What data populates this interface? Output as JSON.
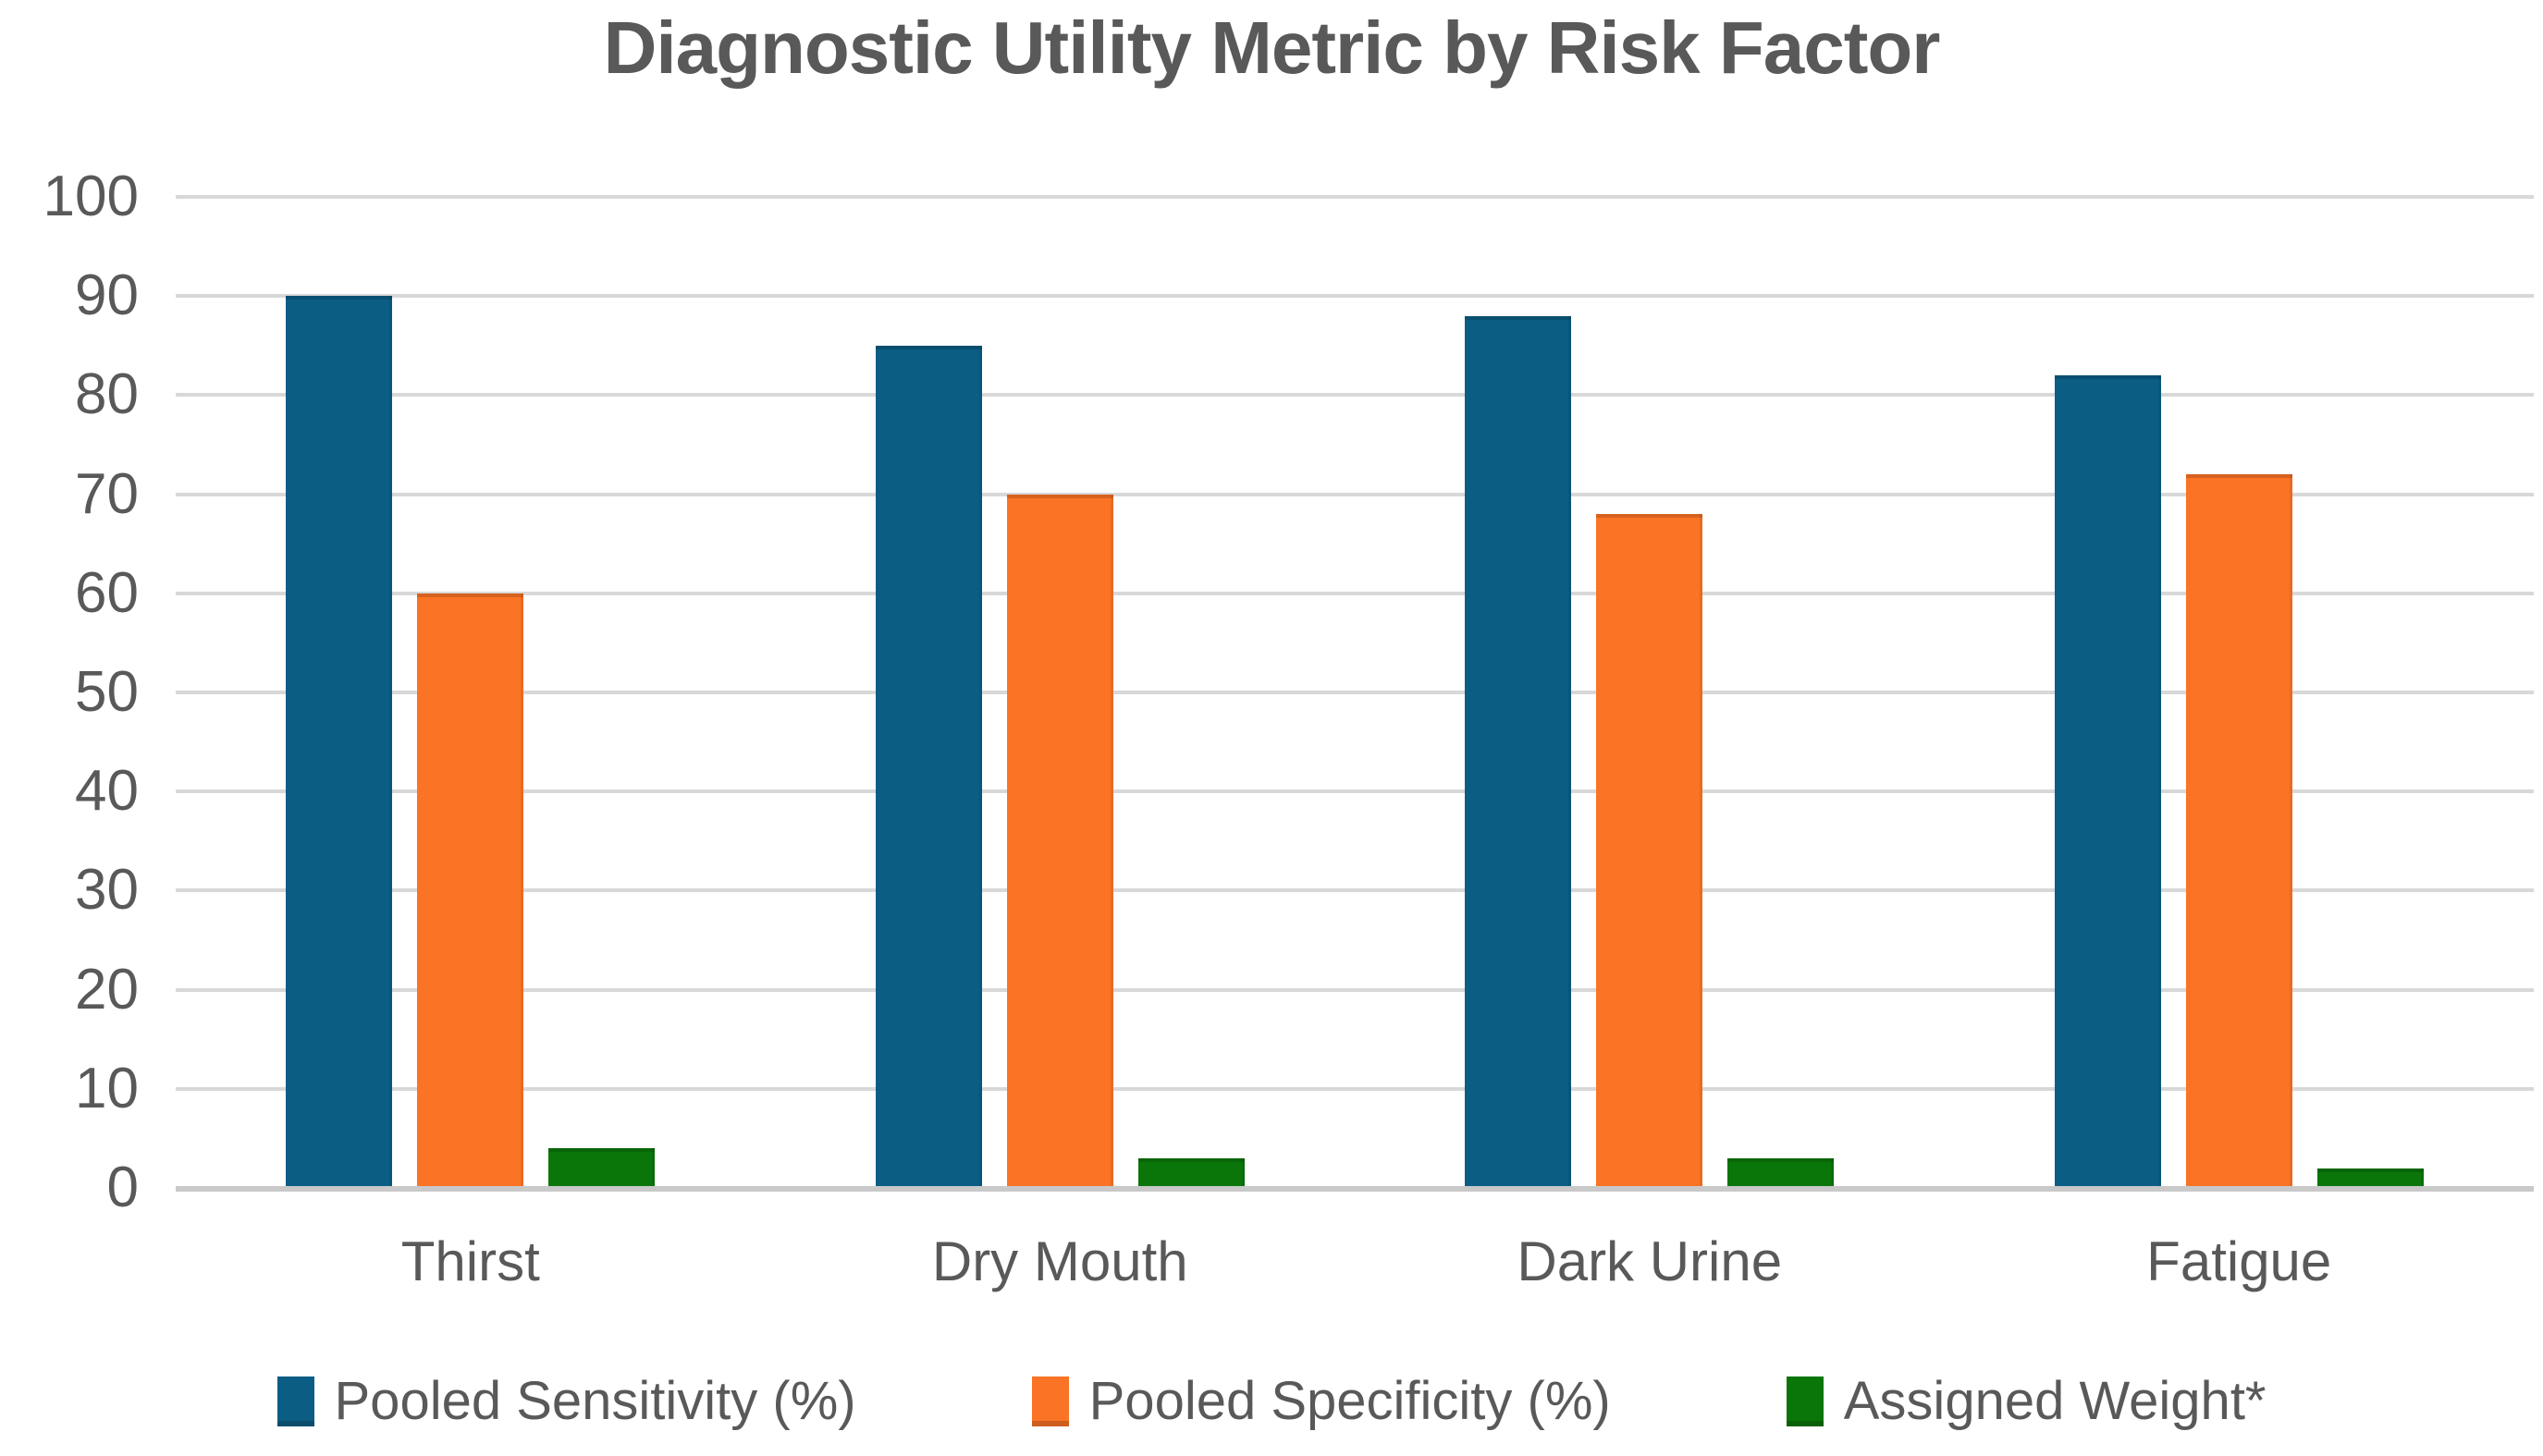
{
  "title": "Diagnostic Utility Metric by Risk Factor",
  "chart_data": {
    "type": "bar",
    "title": "Diagnostic Utility Metric by Risk Factor",
    "categories": [
      "Thirst",
      "Dry Mouth",
      "Dark Urine",
      "Fatigue"
    ],
    "series": [
      {
        "name": "Pooled Sensitivity (%)",
        "color": "#0b5d84",
        "values": [
          90,
          85,
          88,
          82
        ]
      },
      {
        "name": "Pooled Specificity (%)",
        "color": "#fb7325",
        "values": [
          60,
          70,
          68,
          72
        ]
      },
      {
        "name": "Assigned Weight*",
        "color": "#0a760a",
        "values": [
          4,
          3,
          3,
          2
        ]
      }
    ],
    "xlabel": "",
    "ylabel": "",
    "ylim": [
      0,
      100
    ],
    "yticks": [
      100,
      90,
      80,
      70,
      60,
      50,
      40,
      30,
      20,
      10,
      0
    ],
    "grid": true,
    "legend_position": "bottom"
  },
  "colors": {
    "background": "#ffffff",
    "title_text": "#595959",
    "axis_text": "#595959",
    "gridline": "#d8d8d8",
    "baseline": "#c9c9c9"
  }
}
